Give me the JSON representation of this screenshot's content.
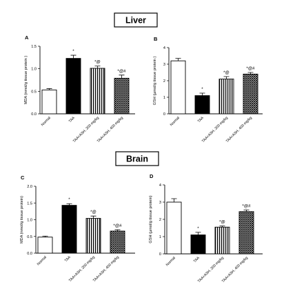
{
  "sections": [
    {
      "label": "Liver",
      "charts": [
        0,
        1
      ]
    },
    {
      "label": "Brain",
      "charts": [
        2,
        3
      ]
    }
  ],
  "chart_data": [
    {
      "panel": "A",
      "type": "bar",
      "ylabel": "MDA (nmol/g tissue protein )",
      "categories": [
        "Normal",
        "TAA",
        "TAA+ASH, 200 mg/kg",
        "TAA+ASH, 400 mg/kg"
      ],
      "values": [
        0.53,
        1.23,
        1.01,
        0.79
      ],
      "errors": [
        0.03,
        0.07,
        0.05,
        0.07
      ],
      "significance": [
        "",
        "*",
        "*@",
        "*@#"
      ],
      "ylim": [
        0,
        1.5
      ],
      "yticks": [
        0.0,
        0.5,
        1.0,
        1.5
      ],
      "yticklabels": [
        "0.0",
        "0.5",
        "1.0",
        "1.5"
      ]
    },
    {
      "panel": "B",
      "type": "bar",
      "ylabel": "GSH (µmol/g tissue protein )",
      "categories": [
        "Normal",
        "TAA",
        "TAA+ASH, 200 mg/kg",
        "TAA+ASH, 400 mg/kg"
      ],
      "values": [
        3.2,
        1.1,
        2.1,
        2.4
      ],
      "errors": [
        0.15,
        0.15,
        0.15,
        0.1
      ],
      "significance": [
        "",
        "*",
        "*@",
        "*@#"
      ],
      "ylim": [
        0,
        4
      ],
      "yticks": [
        0,
        1,
        2,
        3,
        4
      ],
      "yticklabels": [
        "0",
        "1",
        "2",
        "3",
        "4"
      ]
    },
    {
      "panel": "C",
      "type": "bar",
      "ylabel": "MDA (nmol/g tissue protein)",
      "categories": [
        "Normal",
        "TAA",
        "TAA+ASH, 200 mg/kg",
        "TAA+ASH, 400 mg/kg"
      ],
      "values": [
        0.48,
        1.43,
        1.04,
        0.66
      ],
      "errors": [
        0.03,
        0.05,
        0.07,
        0.04
      ],
      "significance": [
        "",
        "*",
        "*@",
        "*@#"
      ],
      "ylim": [
        0,
        2.0
      ],
      "yticks": [
        0.0,
        0.5,
        1.0,
        1.5,
        2.0
      ],
      "yticklabels": [
        "0.0",
        "0.5",
        "1.0",
        "1.5",
        "2.0"
      ]
    },
    {
      "panel": "D",
      "type": "bar",
      "ylabel": "GSH (µmol/g tissue protein)",
      "categories": [
        "Normal",
        "TAA",
        "TAA+ASH, 200 mg/kg",
        "TAA+ASH, 400 mg/kg"
      ],
      "values": [
        3.0,
        1.1,
        1.55,
        2.45
      ],
      "errors": [
        0.2,
        0.15,
        0.07,
        0.1
      ],
      "significance": [
        "",
        "*",
        "*@",
        "*@#"
      ],
      "ylim": [
        0,
        4
      ],
      "yticks": [
        0,
        1,
        2,
        3,
        4
      ],
      "yticklabels": [
        "0",
        "1",
        "2",
        "3",
        "4"
      ]
    }
  ],
  "bar_fills": [
    "white",
    "black",
    "vertical-stripes",
    "crosshatch"
  ]
}
